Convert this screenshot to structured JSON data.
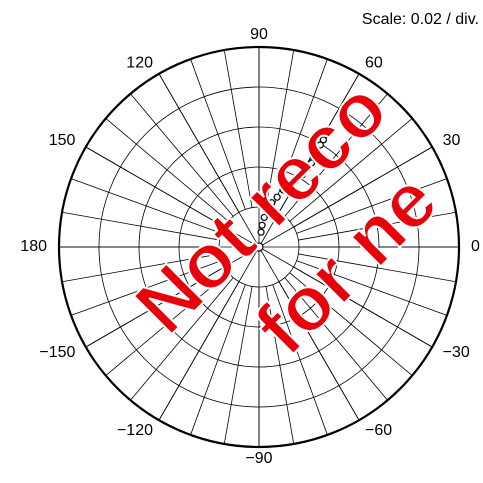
{
  "chart_data": {
    "type": "polar",
    "scale_label": "Scale: 0.02 / div.",
    "theta": [
      82,
      82,
      80,
      78,
      74,
      70,
      67,
      64,
      61,
      59,
      58,
      58,
      59,
      59,
      59,
      59,
      59
    ],
    "r": [
      0.0075,
      0.011,
      0.015,
      0.019,
      0.023,
      0.0265,
      0.031,
      0.0345,
      0.038,
      0.042,
      0.0465,
      0.0495,
      0.0525,
      0.056,
      0.0595,
      0.0625,
      0.0655
    ],
    "rlim": [
      0,
      0.1
    ],
    "rticks": [
      0.02,
      0.04,
      0.06,
      0.08,
      0.1
    ],
    "thetaticks": [
      0,
      30,
      60,
      90,
      120,
      150,
      180,
      {
        "value": -150,
        "label": "−150"
      },
      {
        "value": -120,
        "label": "−120"
      },
      {
        "value": -90,
        "label": "−90"
      },
      {
        "value": -60,
        "label": "−60"
      },
      {
        "value": -30,
        "label": "−30"
      }
    ],
    "theta_minor_step": 10,
    "color": "#000000",
    "watermark": [
      "Not reco",
      "for ne"
    ]
  }
}
